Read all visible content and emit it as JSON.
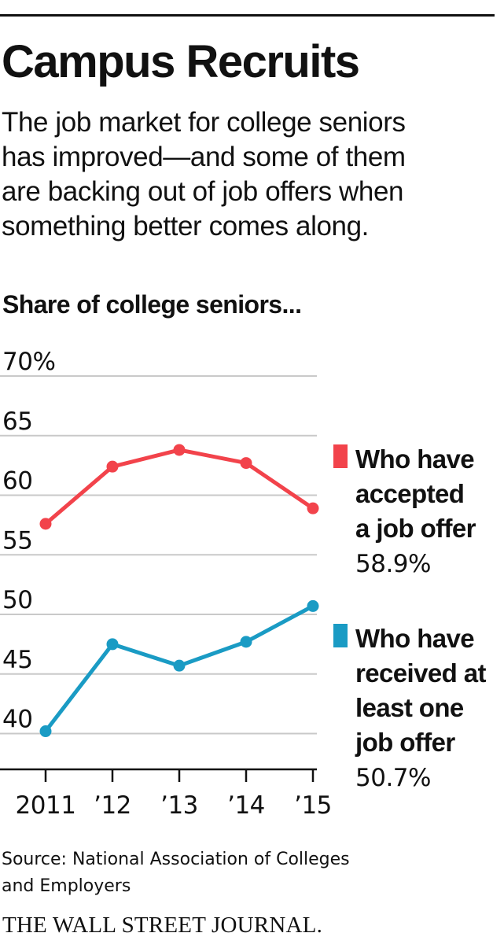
{
  "title": "Campus Recruits",
  "subtitle_lines": [
    "The job market for college seniors",
    "has improved—and some of them",
    "are backing out of job offers when",
    "something better comes along."
  ],
  "source_lines": [
    "Source: National Association of Colleges",
    "and Employers"
  ],
  "publisher": "THE WALL STREET JOURNAL.",
  "chart_data": {
    "type": "line",
    "title": "Share of college seniors...",
    "xlabel": "",
    "ylabel": "",
    "x": [
      "2011",
      "’12",
      "’13",
      "’14",
      "’15"
    ],
    "ylim": [
      37,
      70
    ],
    "yticks": [
      {
        "value": 70,
        "label": "70%"
      },
      {
        "value": 65,
        "label": "65"
      },
      {
        "value": 60,
        "label": "60"
      },
      {
        "value": 55,
        "label": "55"
      },
      {
        "value": 50,
        "label": "50"
      },
      {
        "value": 45,
        "label": "45"
      },
      {
        "value": 40,
        "label": "40"
      }
    ],
    "grid": true,
    "legend": "right, at end of lines",
    "series": [
      {
        "label_lines": [
          "Who have",
          "accepted",
          "a job offer"
        ],
        "value_label": "58.9%",
        "color": "#f2434b",
        "values": [
          57.6,
          62.4,
          63.8,
          62.7,
          58.9
        ]
      },
      {
        "label_lines": [
          "Who have",
          "received at",
          "least one",
          "job offer"
        ],
        "value_label": "50.7%",
        "color": "#1a9bc4",
        "values": [
          40.2,
          47.5,
          45.7,
          47.7,
          50.7
        ]
      }
    ]
  }
}
